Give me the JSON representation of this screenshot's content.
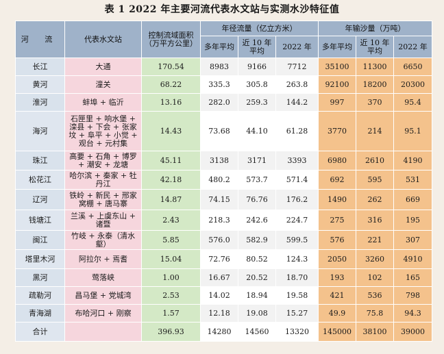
{
  "title": "表 1   2022 年主要河流代表水文站与实测水沙特征值",
  "headers": {
    "river": "河 流",
    "station": "代表水文站",
    "area": "控制流域面积（万平方公里）",
    "flow_group": "年径流量（亿立方米）",
    "sed_group": "年输沙量（万吨）",
    "avg_multi": "多年平均",
    "avg_recent": "近 10 年平均",
    "year_2022": "2022 年"
  },
  "rows": [
    {
      "river": "长江",
      "station": "大通",
      "area": "170.54",
      "flow": [
        "8983",
        "9166",
        "7712"
      ],
      "sed": [
        "35100",
        "11300",
        "6650"
      ]
    },
    {
      "river": "黄河",
      "station": "潼关",
      "area": "68.22",
      "flow": [
        "335.3",
        "305.8",
        "263.8"
      ],
      "sed": [
        "92100",
        "18200",
        "20300"
      ]
    },
    {
      "river": "淮河",
      "station": "蚌埠 + 临沂",
      "area": "13.16",
      "flow": [
        "282.0",
        "259.3",
        "144.2"
      ],
      "sed": [
        "997",
        "370",
        "95.4"
      ]
    },
    {
      "river": "海河",
      "station": "石匣里 + 响水堡 + 滦县 + 下会 + 张家坟 + 阜平 + 小觉 + 观台 + 元村集",
      "area": "14.43",
      "flow": [
        "73.68",
        "44.10",
        "61.28"
      ],
      "sed": [
        "3770",
        "214",
        "95.1"
      ]
    },
    {
      "river": "珠江",
      "station": "高要 + 石角 + 博罗 + 潮安 + 龙塘",
      "area": "45.11",
      "flow": [
        "3138",
        "3171",
        "3393"
      ],
      "sed": [
        "6980",
        "2610",
        "4190"
      ]
    },
    {
      "river": "松花江",
      "station": "哈尔滨 + 秦家 + 牡丹江",
      "area": "42.18",
      "flow": [
        "480.2",
        "573.7",
        "571.4"
      ],
      "sed": [
        "692",
        "595",
        "531"
      ]
    },
    {
      "river": "辽河",
      "station": "铁岭 + 新民 + 邢家窝棚 + 唐马寨",
      "area": "14.87",
      "flow": [
        "74.15",
        "76.76",
        "176.2"
      ],
      "sed": [
        "1490",
        "262",
        "669"
      ]
    },
    {
      "river": "钱塘江",
      "station": "兰溪 + 上虞东山 + 诸暨",
      "area": "2.43",
      "flow": [
        "218.3",
        "242.6",
        "224.7"
      ],
      "sed": [
        "275",
        "316",
        "195"
      ]
    },
    {
      "river": "闽江",
      "station": "竹岐 + 永泰（清水壑）",
      "area": "5.85",
      "flow": [
        "576.0",
        "582.9",
        "599.5"
      ],
      "sed": [
        "576",
        "221",
        "307"
      ]
    },
    {
      "river": "塔里木河",
      "station": "阿拉尔 + 焉耆",
      "area": "15.04",
      "flow": [
        "72.76",
        "80.52",
        "124.3"
      ],
      "sed": [
        "2050",
        "3260",
        "4910"
      ]
    },
    {
      "river": "黑河",
      "station": "莺落峡",
      "area": "1.00",
      "flow": [
        "16.67",
        "20.52",
        "18.70"
      ],
      "sed": [
        "193",
        "102",
        "165"
      ]
    },
    {
      "river": "疏勒河",
      "station": "昌马堡 + 党城湾",
      "area": "2.53",
      "flow": [
        "14.02",
        "18.94",
        "19.58"
      ],
      "sed": [
        "421",
        "536",
        "798"
      ]
    },
    {
      "river": "青海湖",
      "station": "布哈河口 + 刚察",
      "area": "1.57",
      "flow": [
        "12.18",
        "19.08",
        "15.27"
      ],
      "sed": [
        "49.9",
        "75.8",
        "94.3"
      ]
    },
    {
      "river": "合计",
      "station": "",
      "area": "396.93",
      "flow": [
        "14280",
        "14560",
        "13320"
      ],
      "sed": [
        "145000",
        "38100",
        "39000"
      ]
    }
  ]
}
